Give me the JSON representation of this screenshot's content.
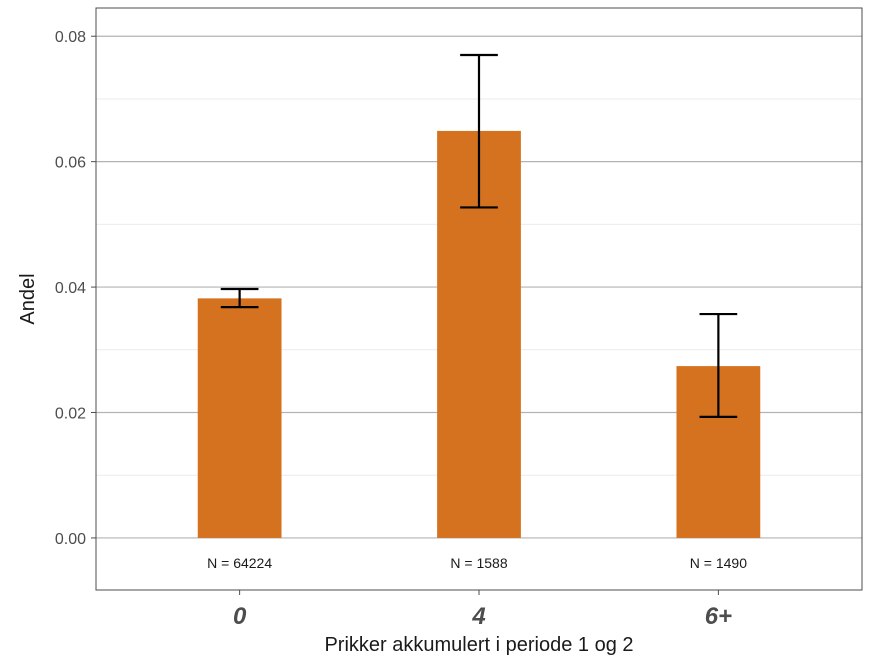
{
  "chart_data": {
    "type": "bar",
    "categories": [
      "0",
      "4",
      "6+"
    ],
    "values": [
      0.0382,
      0.0649,
      0.0274
    ],
    "error_low": [
      0.0368,
      0.0527,
      0.0193
    ],
    "error_high": [
      0.0397,
      0.077,
      0.0357
    ],
    "n_labels": [
      "N =  64224",
      "N =  1588",
      "N =  1490"
    ],
    "xlabel": "Prikker akkumulert i periode 1 og 2",
    "ylabel": "Andel",
    "ylim": [
      -0.0083,
      0.0845
    ],
    "yticks": [
      0.0,
      0.02,
      0.04,
      0.06,
      0.08
    ],
    "ytick_labels": [
      "0.00",
      "0.02",
      "0.04",
      "0.06",
      "0.08"
    ],
    "grid": true,
    "bar_color": "#d4721f",
    "error_color": "#000000",
    "grid_color": "#b3b3b3"
  }
}
